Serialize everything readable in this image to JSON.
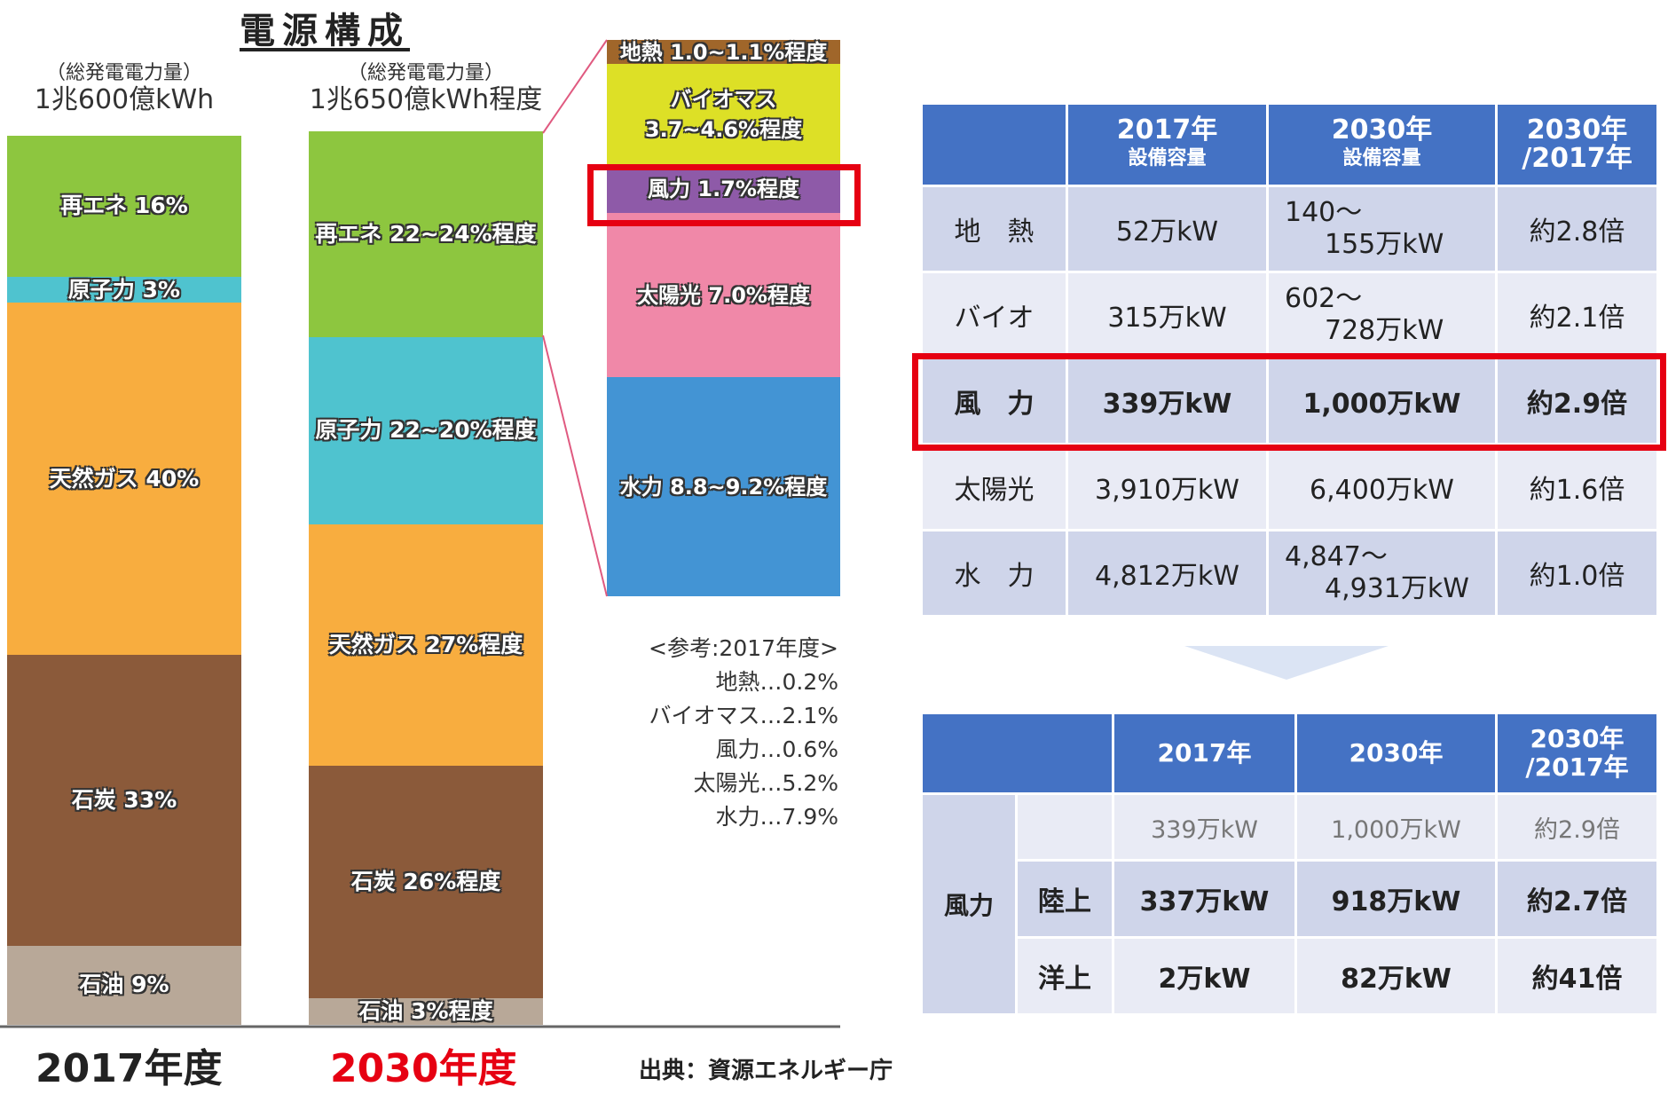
{
  "chart_data": {
    "type": "bar",
    "title": "電源構成",
    "bars": [
      {
        "label": "2017年度",
        "subtitle": "（総発電電力量）",
        "total": "1兆600億kWh",
        "label_color": "#222222",
        "segments": [
          {
            "name": "再エネ",
            "value": 16,
            "text": "再エネ 16%",
            "color": "#8dc63f"
          },
          {
            "name": "原子力",
            "value": 3,
            "text": "原子力 3%",
            "color": "#4fc3cf"
          },
          {
            "name": "天然ガス",
            "value": 40,
            "text": "天然ガス 40%",
            "color": "#f8ad3f"
          },
          {
            "name": "石炭",
            "value": 33,
            "text": "石炭 33%",
            "color": "#8b5a3a"
          },
          {
            "name": "石油",
            "value": 9,
            "text": "石油 9%",
            "color": "#b8a898"
          }
        ]
      },
      {
        "label": "2030年度",
        "subtitle": "（総発電電力量）",
        "total": "1兆650億kWh程度",
        "label_color": "#e60012",
        "segments": [
          {
            "name": "再エネ",
            "value": [
              22,
              24
            ],
            "text": "再エネ 22~24%程度",
            "color": "#8dc63f"
          },
          {
            "name": "原子力",
            "value": [
              22,
              20
            ],
            "text": "原子力 22~20%程度",
            "color": "#4fc3cf"
          },
          {
            "name": "天然ガス",
            "value": 27,
            "text": "天然ガス 27%程度",
            "color": "#f8ad3f"
          },
          {
            "name": "石炭",
            "value": 26,
            "text": "石炭 26%程度",
            "color": "#8b5a3a"
          },
          {
            "name": "石油",
            "value": 3,
            "text": "石油 3%程度",
            "color": "#b8a898"
          }
        ]
      }
    ],
    "breakdown": [
      {
        "name": "地熱",
        "value": [
          1.0,
          1.1
        ],
        "text": "地熱 1.0~1.1%程度",
        "color": "#a0662a"
      },
      {
        "name": "バイオマス",
        "value": [
          3.7,
          4.6
        ],
        "text": "バイオマス\n3.7~4.6%程度",
        "color": "#dde026"
      },
      {
        "name": "風力",
        "value": 1.7,
        "text": "風力 1.7%程度",
        "color": "#8e5aa8",
        "highlight": true
      },
      {
        "name": "太陽光",
        "value": 7.0,
        "text": "太陽光 7.0%程度",
        "color": "#f088a8"
      },
      {
        "name": "水力",
        "value": [
          8.8,
          9.2
        ],
        "text": "水力 8.8~9.2%程度",
        "color": "#4394d4"
      }
    ]
  },
  "reference": {
    "title": "<参考:2017年度>",
    "items": [
      "地熱…0.2%",
      "バイオマス…2.1%",
      "風力…0.6%",
      "太陽光…5.2%",
      "水力…7.9%"
    ]
  },
  "source": "出典：資源エネルギー庁",
  "table1": {
    "headers": [
      {
        "main": "",
        "sub": ""
      },
      {
        "main": "2017年",
        "sub": "設備容量"
      },
      {
        "main": "2030年",
        "sub": "設備容量"
      },
      {
        "main": "2030年\n/2017年",
        "sub": ""
      }
    ],
    "rows": [
      {
        "name": "地　熱",
        "c2017": "52万kW",
        "c2030a": "140～",
        "c2030b": "155万kW",
        "ratio": "約2.8倍"
      },
      {
        "name": "バイオ",
        "c2017": "315万kW",
        "c2030a": "602～",
        "c2030b": "728万kW",
        "ratio": "約2.1倍"
      },
      {
        "name": "風　力",
        "c2017": "339万kW",
        "c2030a": "1,000万kW",
        "c2030b": "",
        "ratio": "約2.9倍",
        "highlight": true
      },
      {
        "name": "太陽光",
        "c2017": "3,910万kW",
        "c2030a": "6,400万kW",
        "c2030b": "",
        "ratio": "約1.6倍"
      },
      {
        "name": "水　力",
        "c2017": "4,812万kW",
        "c2030a": "4,847～",
        "c2030b": "4,931万kW",
        "ratio": "約1.0倍"
      }
    ]
  },
  "table2": {
    "headers": [
      "",
      "2017年",
      "2030年",
      "2030年\n/2017年"
    ],
    "group": "風力",
    "total": {
      "c2017": "339万kW",
      "c2030": "1,000万kW",
      "ratio": "約2.9倍"
    },
    "rows": [
      {
        "name": "陸上",
        "c2017": "337万kW",
        "c2030": "918万kW",
        "ratio": "約2.7倍"
      },
      {
        "name": "洋上",
        "c2017": "2万kW",
        "c2030": "82万kW",
        "ratio": "約41倍"
      }
    ]
  },
  "colors": {
    "header": "#4472c4",
    "highlight": "#e60012",
    "row": "#cfd5ea",
    "row_alt": "#e9ebf5"
  }
}
